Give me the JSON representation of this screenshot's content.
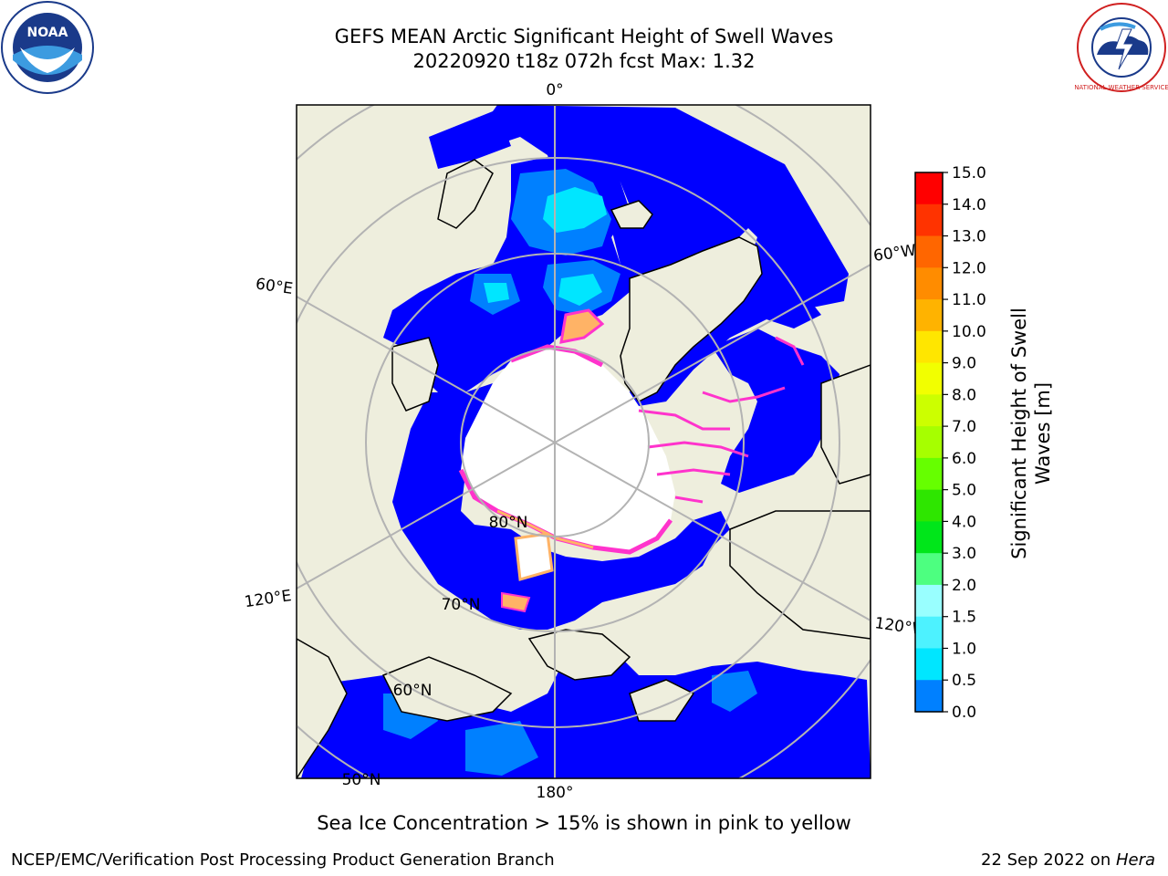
{
  "header": {
    "title_line1": "GEFS MEAN Arctic Significant Height of Swell Waves",
    "title_line2": "20220920 t18z 072h fcst   Max: 1.32"
  },
  "map": {
    "longitude_labels": {
      "top": "0°",
      "bottom": "180°",
      "upper_left": "60°E",
      "lower_left": "120°E",
      "upper_right": "60°W",
      "lower_right": "120°W"
    },
    "latitude_labels": [
      "80°N",
      "70°N",
      "60°N",
      "50°N"
    ],
    "colors": {
      "land": "#eeeedd",
      "ice": "#ffffff",
      "ocean_low": "#0000ff"
    }
  },
  "colorbar": {
    "title": "Significant Height of Swell Waves [m]",
    "ticks": [
      "15.0",
      "14.0",
      "13.0",
      "12.0",
      "11.0",
      "10.0",
      "9.0",
      "8.0",
      "7.0",
      "6.0",
      "5.0",
      "4.0",
      "3.0",
      "2.0",
      "1.5",
      "1.0",
      "0.5",
      "0.0"
    ],
    "colors": [
      "#ff0000",
      "#ff3300",
      "#ff6600",
      "#ff8c00",
      "#ffb300",
      "#ffe600",
      "#f2ff00",
      "#ccff00",
      "#a6ff00",
      "#66ff00",
      "#2ee600",
      "#00e61a",
      "#4dff80",
      "#99ffff",
      "#4df2ff",
      "#00e6ff",
      "#0080ff",
      "#0000ff"
    ]
  },
  "note": "Sea Ice Concentration > 15% is shown in pink to yellow",
  "footer": {
    "left": "NCEP/EMC/Verification Post Processing Product Generation Branch",
    "right_prefix": "22 Sep 2022 on ",
    "right_host": "Hera"
  },
  "logos": {
    "noaa": "NOAA",
    "nws": "NATIONAL WEATHER SERVICE"
  }
}
